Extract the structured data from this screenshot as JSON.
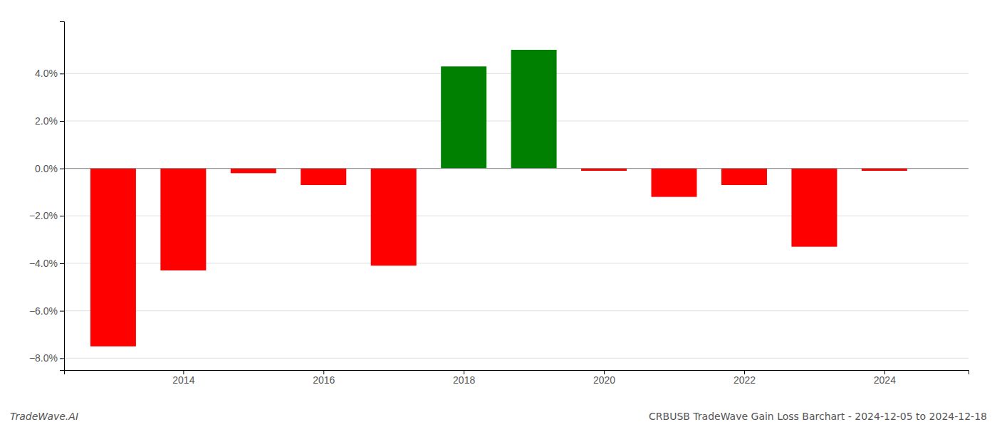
{
  "chart_data": {
    "type": "bar",
    "x": [
      2013,
      2014,
      2015,
      2016,
      2017,
      2018,
      2019,
      2020,
      2021,
      2022,
      2023,
      2024
    ],
    "values": [
      -0.075,
      -0.043,
      -0.002,
      -0.007,
      -0.041,
      0.043,
      0.05,
      -0.001,
      -0.012,
      -0.007,
      -0.033,
      -0.001
    ],
    "colors": [
      "red",
      "red",
      "red",
      "red",
      "red",
      "green",
      "green",
      "red",
      "red",
      "red",
      "red",
      "red"
    ],
    "xlim": [
      2012.3,
      2025.2
    ],
    "xticks": [
      2014,
      2016,
      2018,
      2020,
      2022,
      2024
    ],
    "ylim": [
      -0.085,
      0.062
    ],
    "yticks": [
      {
        "value": -0.08,
        "label": "−8.0%"
      },
      {
        "value": -0.06,
        "label": "−6.0%"
      },
      {
        "value": -0.04,
        "label": "−4.0%"
      },
      {
        "value": -0.02,
        "label": "−2.0%"
      },
      {
        "value": 0.0,
        "label": "0.0%"
      },
      {
        "value": 0.02,
        "label": "2.0%"
      },
      {
        "value": 0.04,
        "label": "4.0%"
      }
    ],
    "grid": true,
    "annotations": [
      "TradeWave.AI",
      "CRBUSB TradeWave Gain Loss Barchart - 2024-12-05 to 2024-12-18"
    ]
  }
}
